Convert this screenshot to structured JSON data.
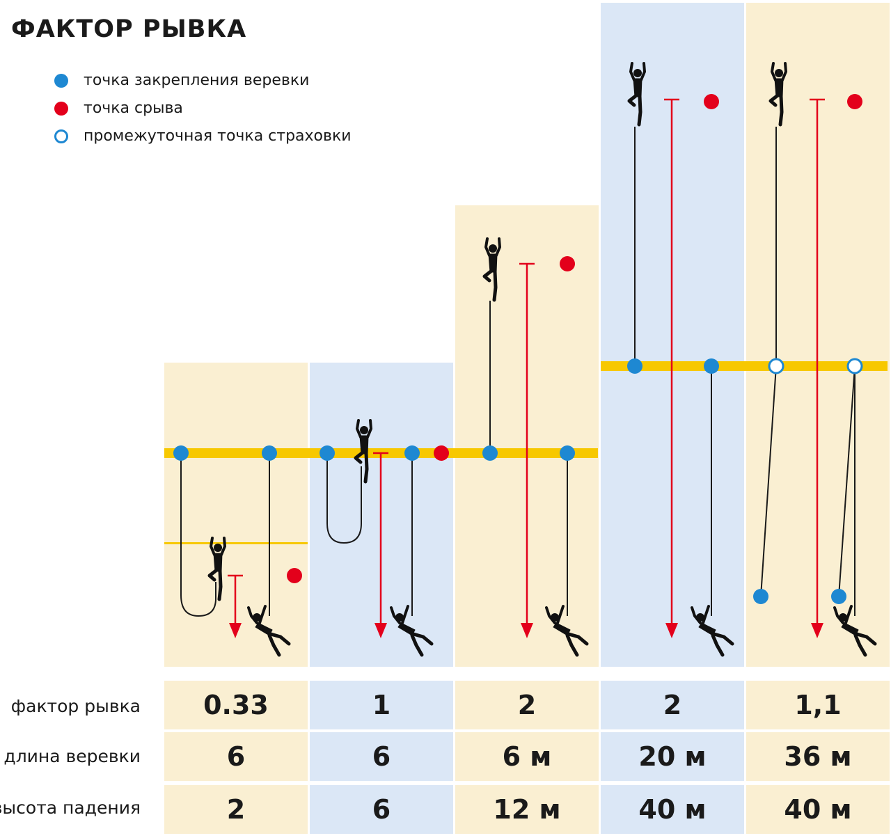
{
  "title": "ФАКТОР РЫВКА",
  "legend": [
    {
      "label": "точка закрепления веревки",
      "color": "#1e88d2",
      "hollow": false
    },
    {
      "label": "точка срыва",
      "color": "#e3001b",
      "hollow": false
    },
    {
      "label": "промежуточная точка страховки",
      "color": "#1e88d2",
      "hollow": true
    }
  ],
  "colors": {
    "panel_cream": "#faefd2",
    "panel_blue": "#dbe7f6",
    "ledge": "#f7c800",
    "anchor": "#1e88d2",
    "fall": "#e3001b",
    "rope": "#1a1a1a"
  },
  "table": {
    "rows": [
      {
        "label": "фактор рывка",
        "values": [
          "0.33",
          "1",
          "2",
          "2",
          "1,1"
        ]
      },
      {
        "label": "длина веревки",
        "values": [
          "6",
          "6",
          "6 м",
          "20 м",
          "36 м"
        ]
      },
      {
        "label": "высота падения",
        "values": [
          "2",
          "6",
          "12 м",
          "40 м",
          "40 м"
        ]
      }
    ]
  }
}
